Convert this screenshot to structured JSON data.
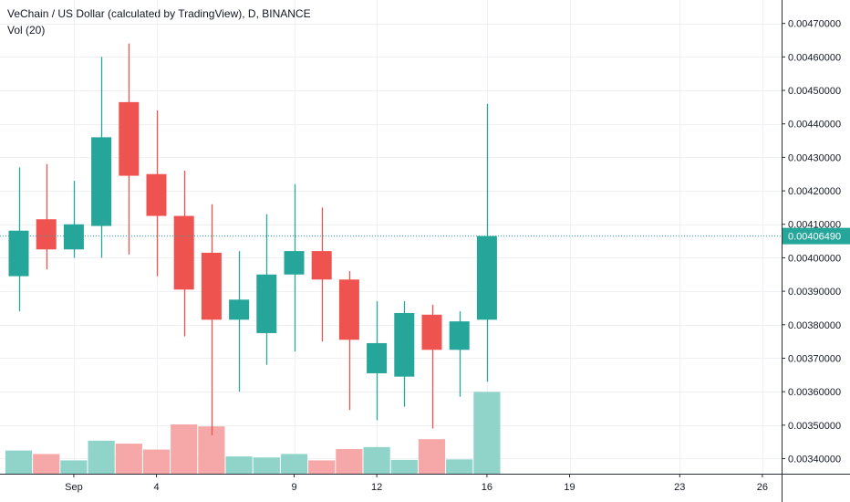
{
  "header": {
    "title": "VeChain / US Dollar (calculated by TradingView), D, BINANCE",
    "indicator": "Vol (20)"
  },
  "colors": {
    "up": "#26a69a",
    "down": "#ef5350",
    "up_volume": "#8fd3c9",
    "down_volume": "#f5a8a7",
    "grid": "#eef0f3",
    "axis": "#2a2e39",
    "last_price": "#26a69a"
  },
  "chart_data": {
    "type": "candlestick",
    "title": "",
    "xlabel": "",
    "ylabel": "",
    "ylim": [
      0.003355,
      0.00477
    ],
    "y_ticks": [
      0.0034,
      0.0035,
      0.0036,
      0.0037,
      0.0038,
      0.0039,
      0.004,
      0.0041,
      0.0042,
      0.0043,
      0.0044,
      0.0045,
      0.0046,
      0.0047
    ],
    "y_tick_labels": [
      "0.00340000",
      "0.00350000",
      "0.00360000",
      "0.00370000",
      "0.00380000",
      "0.00390000",
      "0.00400000",
      "0.00410000",
      "0.00420000",
      "0.00430000",
      "0.00440000",
      "0.00450000",
      "0.00460000",
      "0.00470000"
    ],
    "x_ticks": [
      {
        "index": 2,
        "label": "Sep"
      },
      {
        "index": 5,
        "label": "4"
      },
      {
        "index": 10,
        "label": "9"
      },
      {
        "index": 13,
        "label": "12"
      },
      {
        "index": 17,
        "label": "16"
      },
      {
        "index": 20,
        "label": "19"
      },
      {
        "index": 24,
        "label": "23"
      },
      {
        "index": 27,
        "label": "26"
      }
    ],
    "first_index": 0,
    "last_index": 28,
    "candles": [
      {
        "open": 0.003945,
        "high": 0.00427,
        "low": 0.00384,
        "close": 0.004081
      },
      {
        "open": 0.004115,
        "high": 0.00428,
        "low": 0.003965,
        "close": 0.004025
      },
      {
        "open": 0.004025,
        "high": 0.00423,
        "low": 0.004,
        "close": 0.0041
      },
      {
        "open": 0.004095,
        "high": 0.0046,
        "low": 0.004,
        "close": 0.00436
      },
      {
        "open": 0.004465,
        "high": 0.00464,
        "low": 0.00401,
        "close": 0.004245
      },
      {
        "open": 0.00425,
        "high": 0.00444,
        "low": 0.003945,
        "close": 0.004125
      },
      {
        "open": 0.004125,
        "high": 0.00426,
        "low": 0.003765,
        "close": 0.003905
      },
      {
        "open": 0.004015,
        "high": 0.00416,
        "low": 0.00347,
        "close": 0.003815
      },
      {
        "open": 0.003815,
        "high": 0.00402,
        "low": 0.0036,
        "close": 0.003875
      },
      {
        "open": 0.003775,
        "high": 0.00413,
        "low": 0.00368,
        "close": 0.00395
      },
      {
        "open": 0.00395,
        "high": 0.00422,
        "low": 0.00372,
        "close": 0.00402
      },
      {
        "open": 0.00402,
        "high": 0.00415,
        "low": 0.00375,
        "close": 0.003935
      },
      {
        "open": 0.003935,
        "high": 0.00396,
        "low": 0.003545,
        "close": 0.003755
      },
      {
        "open": 0.003655,
        "high": 0.00387,
        "low": 0.003515,
        "close": 0.003745
      },
      {
        "open": 0.003645,
        "high": 0.00387,
        "low": 0.003555,
        "close": 0.003835
      },
      {
        "open": 0.00383,
        "high": 0.00386,
        "low": 0.00349,
        "close": 0.003725
      },
      {
        "open": 0.003725,
        "high": 0.00384,
        "low": 0.003585,
        "close": 0.00381
      },
      {
        "open": 0.003815,
        "high": 0.00446,
        "low": 0.00363,
        "close": 0.004065
      }
    ],
    "volumes": [
      0.47,
      0.4,
      0.27,
      0.67,
      0.61,
      0.49,
      1.0,
      0.96,
      0.35,
      0.33,
      0.4,
      0.27,
      0.5,
      0.54,
      0.28,
      0.7,
      0.29,
      1.66
    ],
    "last_price": 0.0040649,
    "last_price_label": "0.00406490"
  }
}
